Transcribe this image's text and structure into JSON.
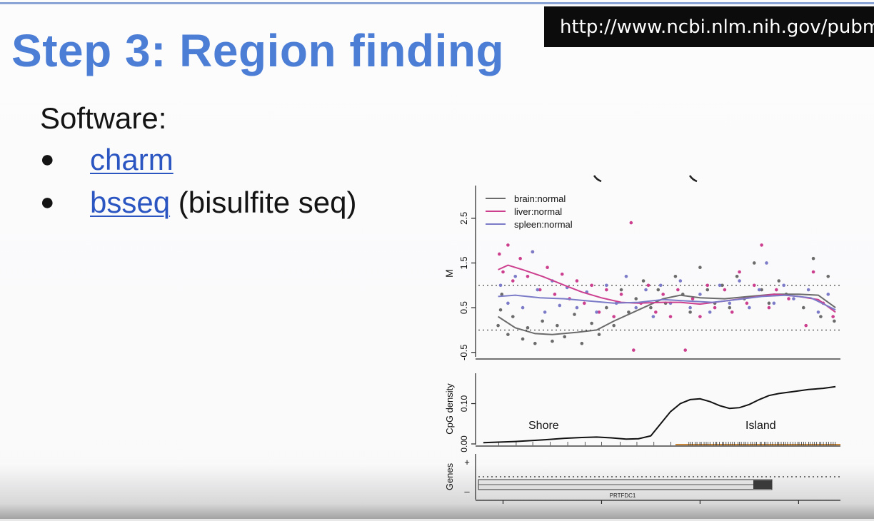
{
  "slide": {
    "title": "Step 3: Region finding",
    "url": "http://www.ncbi.nlm.nih.gov/pubmed",
    "software_label": "Software:",
    "items": [
      {
        "link": "charm",
        "suffix": ""
      },
      {
        "link": "bsseq",
        "suffix": " (bisulfite seq)"
      }
    ]
  },
  "colors": {
    "title": "#4d7ed6",
    "link": "#2b56c2",
    "brain": "#6b6b6b",
    "liver": "#cc3f8f",
    "spleen": "#7b7bc8",
    "island_marks": "#c8863a"
  },
  "chart_data": [
    {
      "type": "scatter",
      "panel": "methylation",
      "ylabel": "M",
      "ylim": [
        -0.6,
        3.2
      ],
      "yticks": [
        -0.5,
        0.5,
        1.5,
        2.5
      ],
      "reference_lines": [
        0,
        1
      ],
      "xlim": [
        25280300,
        25281770
      ],
      "legend": [
        "brain:normal",
        "liver:normal",
        "spleen:normal"
      ],
      "series": [
        {
          "name": "brain:normal",
          "smooth": [
            [
              25280380,
              0.3
            ],
            [
              25280450,
              0.05
            ],
            [
              25280530,
              -0.08
            ],
            [
              25280600,
              -0.1
            ],
            [
              25280700,
              -0.05
            ],
            [
              25280780,
              0
            ],
            [
              25280850,
              0.2
            ],
            [
              25280950,
              0.45
            ],
            [
              25281050,
              0.7
            ],
            [
              25281120,
              0.78
            ],
            [
              25281200,
              0.72
            ],
            [
              25281300,
              0.7
            ],
            [
              25281400,
              0.75
            ],
            [
              25281500,
              0.8
            ],
            [
              25281600,
              0.8
            ],
            [
              25281680,
              0.78
            ],
            [
              25281750,
              0.5
            ]
          ],
          "points": [
            [
              25280380,
              0.1
            ],
            [
              25280390,
              0.45
            ],
            [
              25280395,
              0.8
            ],
            [
              25280420,
              -0.1
            ],
            [
              25280440,
              0.3
            ],
            [
              25280480,
              -0.2
            ],
            [
              25280500,
              0.05
            ],
            [
              25280530,
              -0.3
            ],
            [
              25280560,
              0.2
            ],
            [
              25280600,
              -0.25
            ],
            [
              25280620,
              0.1
            ],
            [
              25280650,
              -0.15
            ],
            [
              25280690,
              0.35
            ],
            [
              25280720,
              -0.3
            ],
            [
              25280760,
              0.15
            ],
            [
              25280790,
              -0.1
            ],
            [
              25280820,
              0.5
            ],
            [
              25280850,
              0.1
            ],
            [
              25280880,
              0.9
            ],
            [
              25280910,
              0.4
            ],
            [
              25280940,
              0.7
            ],
            [
              25280970,
              1.1
            ],
            [
              25281000,
              0.5
            ],
            [
              25281030,
              0.9
            ],
            [
              25281060,
              0.6
            ],
            [
              25281100,
              1.2
            ],
            [
              25281130,
              0.8
            ],
            [
              25281160,
              0.4
            ],
            [
              25281200,
              1.4
            ],
            [
              25281230,
              0.9
            ],
            [
              25281260,
              0.6
            ],
            [
              25281290,
              1.0
            ],
            [
              25281320,
              0.5
            ],
            [
              25281350,
              1.2
            ],
            [
              25281380,
              0.7
            ],
            [
              25281420,
              1.5
            ],
            [
              25281450,
              0.9
            ],
            [
              25281480,
              0.6
            ],
            [
              25281520,
              1.1
            ],
            [
              25281550,
              0.8
            ],
            [
              25281620,
              0.5
            ],
            [
              25281660,
              1.6
            ],
            [
              25281690,
              0.3
            ],
            [
              25281720,
              1.2
            ],
            [
              25281745,
              0.2
            ]
          ]
        },
        {
          "name": "liver:normal",
          "smooth": [
            [
              25280380,
              1.35
            ],
            [
              25280420,
              1.45
            ],
            [
              25280480,
              1.35
            ],
            [
              25280560,
              1.2
            ],
            [
              25280650,
              1.0
            ],
            [
              25280720,
              0.85
            ],
            [
              25280800,
              0.72
            ],
            [
              25280880,
              0.62
            ],
            [
              25280950,
              0.6
            ],
            [
              25281050,
              0.62
            ],
            [
              25281120,
              0.62
            ],
            [
              25281200,
              0.58
            ],
            [
              25281300,
              0.65
            ],
            [
              25281400,
              0.72
            ],
            [
              25281500,
              0.8
            ],
            [
              25281600,
              0.75
            ],
            [
              25281680,
              0.68
            ],
            [
              25281750,
              0.4
            ]
          ],
          "points": [
            [
              25280385,
              1.7
            ],
            [
              25280400,
              1.3
            ],
            [
              25280420,
              1.9
            ],
            [
              25280440,
              1.1
            ],
            [
              25280470,
              1.6
            ],
            [
              25280500,
              1.2
            ],
            [
              25280520,
              1.75
            ],
            [
              25280550,
              0.9
            ],
            [
              25280580,
              1.4
            ],
            [
              25280610,
              0.8
            ],
            [
              25280640,
              1.25
            ],
            [
              25280670,
              0.7
            ],
            [
              25280700,
              1.1
            ],
            [
              25280730,
              0.6
            ],
            [
              25280760,
              1.0
            ],
            [
              25280790,
              0.4
            ],
            [
              25280820,
              0.9
            ],
            [
              25280850,
              0.3
            ],
            [
              25280880,
              0.8
            ],
            [
              25280920,
              2.4
            ],
            [
              25280930,
              -0.45
            ],
            [
              25280960,
              0.6
            ],
            [
              25280990,
              1.0
            ],
            [
              25281020,
              0.4
            ],
            [
              25281050,
              0.8
            ],
            [
              25281080,
              0.3
            ],
            [
              25281110,
              0.9
            ],
            [
              25281140,
              -0.45
            ],
            [
              25281170,
              0.7
            ],
            [
              25281200,
              0.3
            ],
            [
              25281230,
              1.0
            ],
            [
              25281260,
              0.5
            ],
            [
              25281300,
              0.9
            ],
            [
              25281330,
              0.4
            ],
            [
              25281360,
              1.3
            ],
            [
              25281390,
              0.6
            ],
            [
              25281420,
              1.0
            ],
            [
              25281450,
              1.9
            ],
            [
              25281480,
              0.5
            ],
            [
              25281510,
              0.9
            ],
            [
              25281560,
              0.7
            ],
            [
              25281630,
              0.1
            ],
            [
              25281660,
              1.3
            ],
            [
              25281700,
              0.6
            ],
            [
              25281740,
              0.3
            ]
          ]
        },
        {
          "name": "spleen:normal",
          "smooth": [
            [
              25280380,
              0.75
            ],
            [
              25280450,
              0.78
            ],
            [
              25280550,
              0.72
            ],
            [
              25280650,
              0.7
            ],
            [
              25280750,
              0.65
            ],
            [
              25280850,
              0.6
            ],
            [
              25280950,
              0.62
            ],
            [
              25281050,
              0.68
            ],
            [
              25281150,
              0.65
            ],
            [
              25281250,
              0.62
            ],
            [
              25281350,
              0.68
            ],
            [
              25281450,
              0.75
            ],
            [
              25281550,
              0.78
            ],
            [
              25281650,
              0.72
            ],
            [
              25281750,
              0.45
            ]
          ],
          "points": [
            [
              25280390,
              1.0
            ],
            [
              25280420,
              0.6
            ],
            [
              25280450,
              1.2
            ],
            [
              25280480,
              0.5
            ],
            [
              25280520,
              1.75
            ],
            [
              25280540,
              0.9
            ],
            [
              25280570,
              0.4
            ],
            [
              25280600,
              1.1
            ],
            [
              25280630,
              0.55
            ],
            [
              25280660,
              0.95
            ],
            [
              25280700,
              0.5
            ],
            [
              25280740,
              0.85
            ],
            [
              25280780,
              0.4
            ],
            [
              25280820,
              1.0
            ],
            [
              25280860,
              0.6
            ],
            [
              25280900,
              1.2
            ],
            [
              25280940,
              0.5
            ],
            [
              25280980,
              0.9
            ],
            [
              25281010,
              0.3
            ],
            [
              25281040,
              1.0
            ],
            [
              25281080,
              0.6
            ],
            [
              25281120,
              1.1
            ],
            [
              25281160,
              0.5
            ],
            [
              25281200,
              0.8
            ],
            [
              25281240,
              0.4
            ],
            [
              25281280,
              1.0
            ],
            [
              25281320,
              0.6
            ],
            [
              25281360,
              1.1
            ],
            [
              25281400,
              0.5
            ],
            [
              25281440,
              0.9
            ],
            [
              25281470,
              1.5
            ],
            [
              25281500,
              0.6
            ],
            [
              25281540,
              1.0
            ],
            [
              25281580,
              0.7
            ],
            [
              25281640,
              0.9
            ],
            [
              25281680,
              0.4
            ],
            [
              25281720,
              0.8
            ]
          ]
        }
      ]
    },
    {
      "type": "line",
      "panel": "cpg_density",
      "ylabel": "CpG density",
      "ylim": [
        0,
        0.17
      ],
      "yticks": [
        "0.00",
        "0.10"
      ],
      "annotations": [
        "Shore",
        "Island"
      ],
      "series": [
        {
          "name": "",
          "points": [
            [
              25280320,
              0.003
            ],
            [
              25280450,
              0.006
            ],
            [
              25280560,
              0.01
            ],
            [
              25280650,
              0.014
            ],
            [
              25280720,
              0.016
            ],
            [
              25280780,
              0.017
            ],
            [
              25280840,
              0.015
            ],
            [
              25280900,
              0.012
            ],
            [
              25280950,
              0.013
            ],
            [
              25281000,
              0.02
            ],
            [
              25281040,
              0.05
            ],
            [
              25281080,
              0.08
            ],
            [
              25281120,
              0.1
            ],
            [
              25281160,
              0.11
            ],
            [
              25281200,
              0.112
            ],
            [
              25281240,
              0.105
            ],
            [
              25281280,
              0.095
            ],
            [
              25281320,
              0.088
            ],
            [
              25281360,
              0.09
            ],
            [
              25281400,
              0.098
            ],
            [
              25281440,
              0.11
            ],
            [
              25281480,
              0.12
            ],
            [
              25281520,
              0.125
            ],
            [
              25281580,
              0.13
            ],
            [
              25281640,
              0.135
            ],
            [
              25281700,
              0.138
            ],
            [
              25281750,
              0.142
            ]
          ]
        }
      ]
    },
    {
      "type": "table",
      "panel": "genes",
      "ylabel": "Genes",
      "yticks": [
        "+",
        "–"
      ],
      "gene_name": "PRTFDC1",
      "xticks": [
        "25280400",
        "25280800",
        "25281200",
        "25281600"
      ]
    }
  ]
}
